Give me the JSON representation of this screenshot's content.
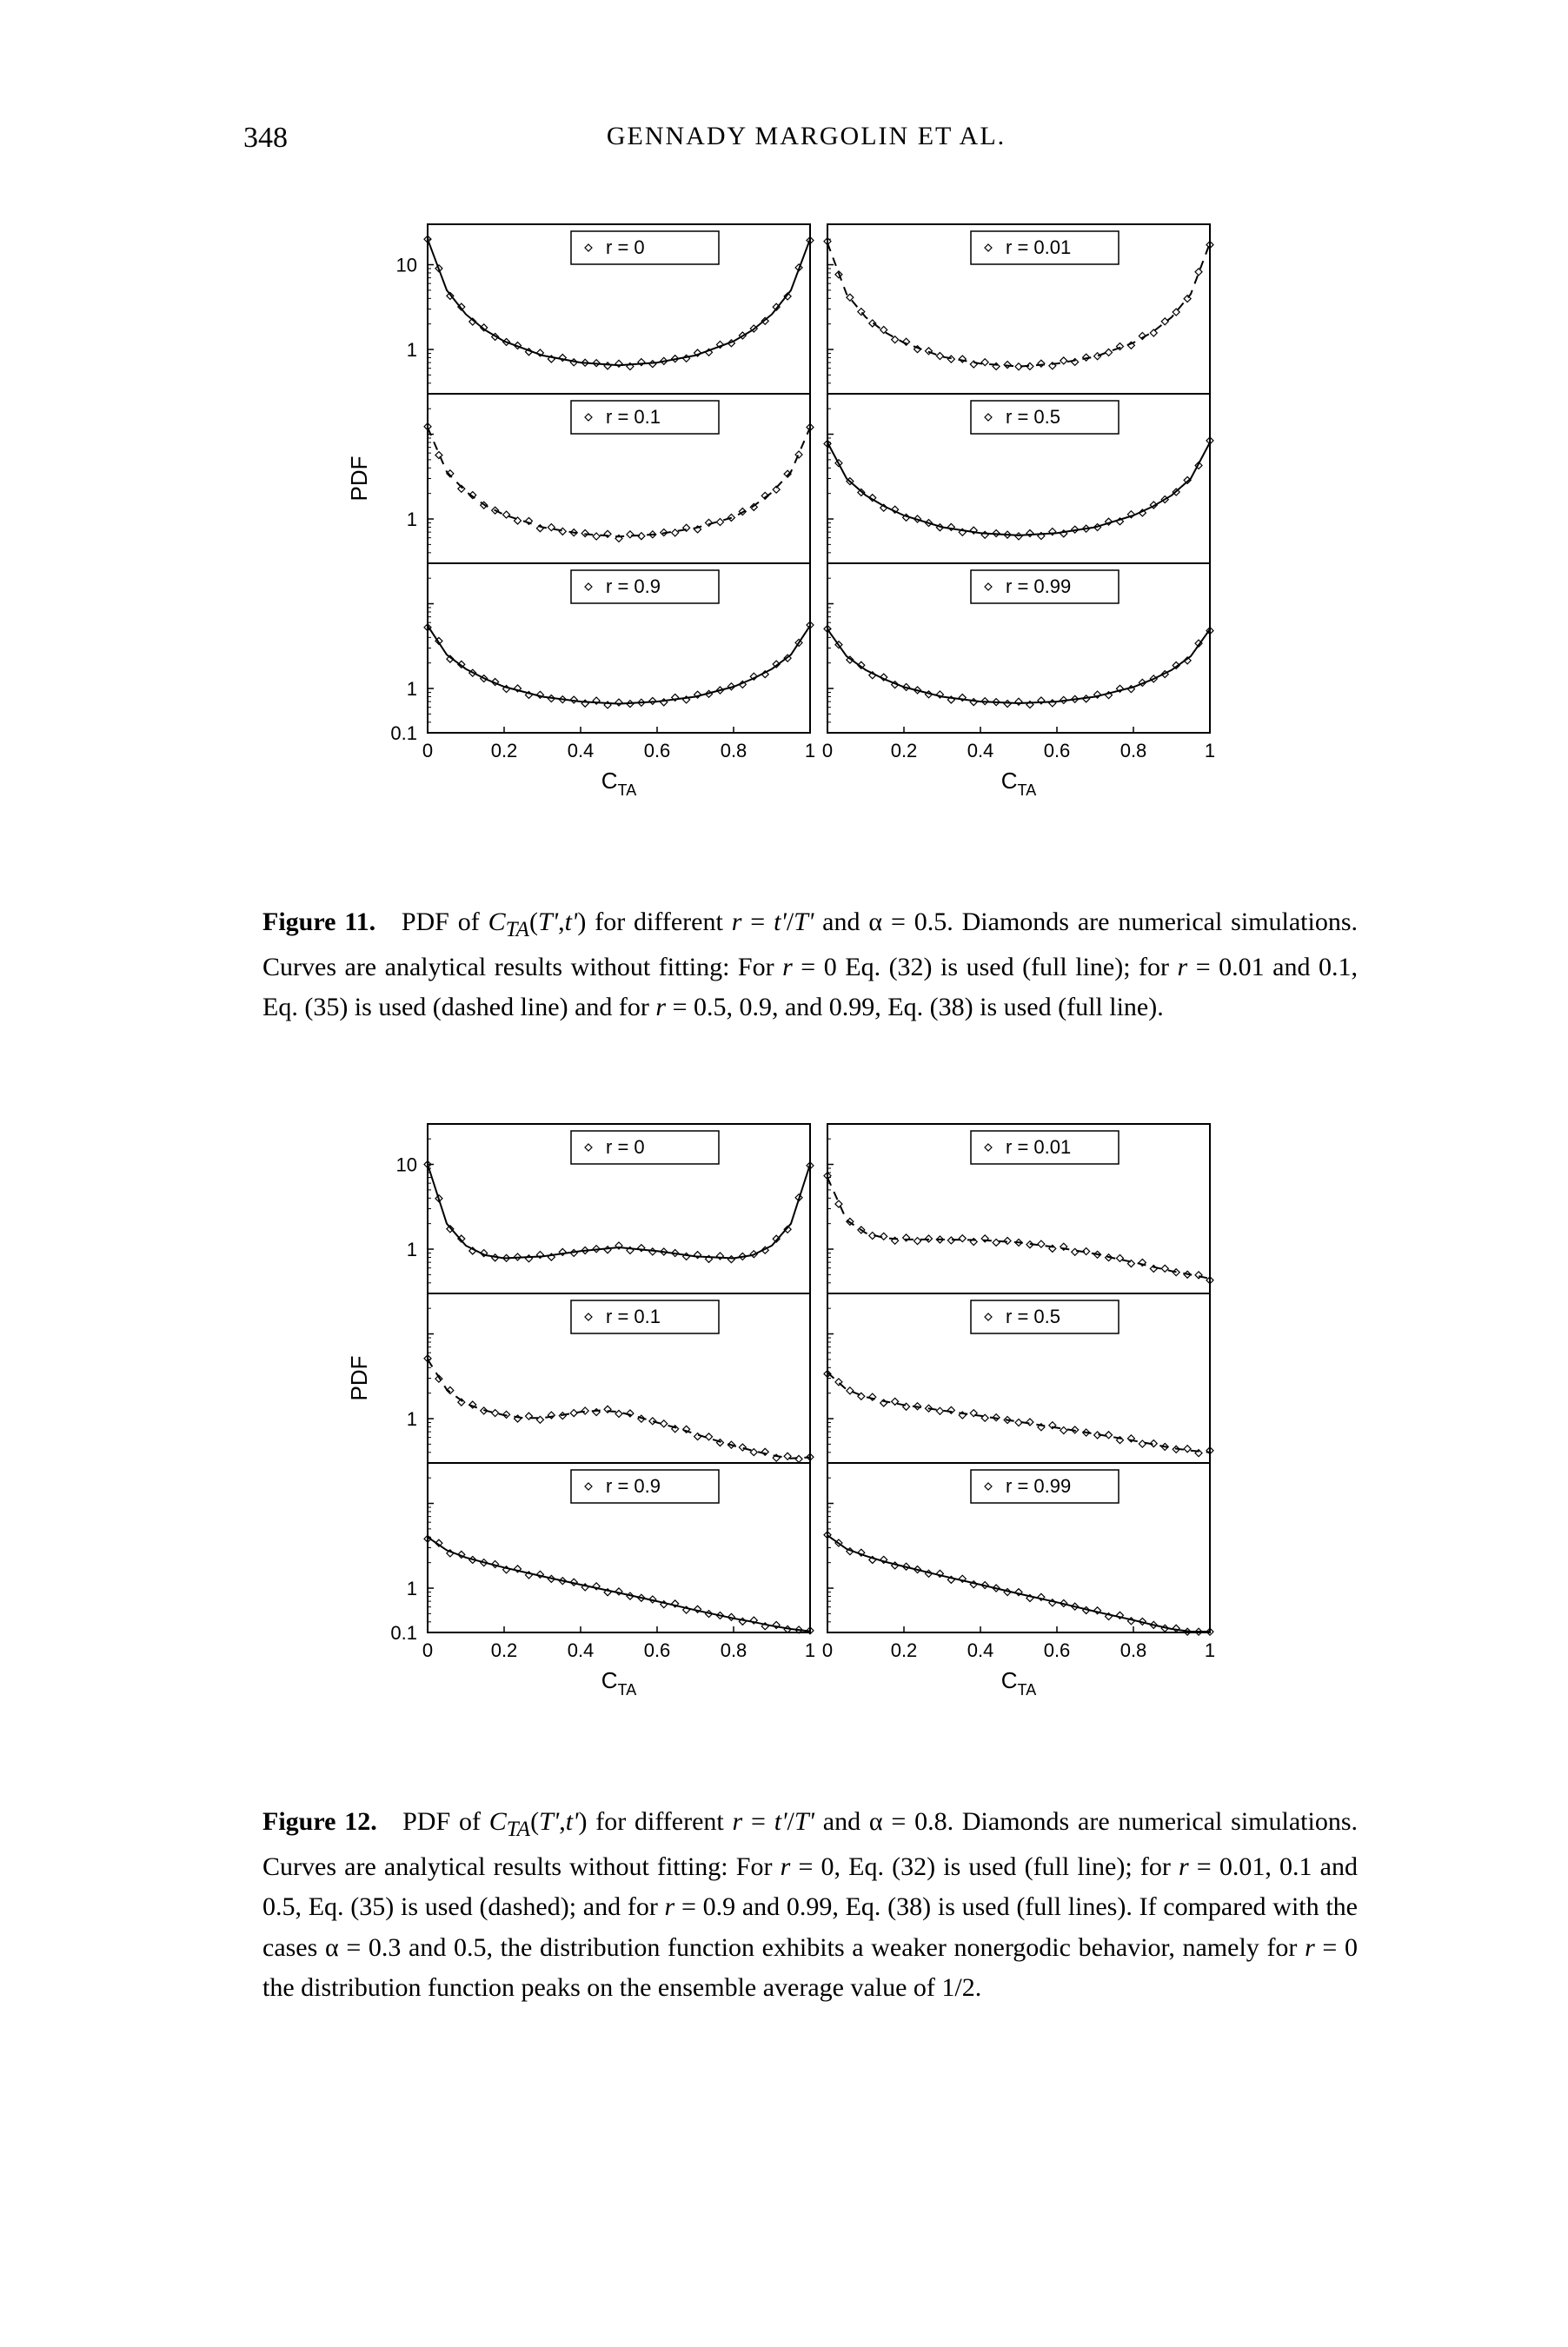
{
  "page": {
    "number": "348",
    "running_head": "GENNADY MARGOLIN ET AL."
  },
  "figures": [
    {
      "id": "fig11",
      "caption_lead": "Figure 11.",
      "caption_body": "PDF of C_{TA}(T',t') for different r = t'/T' and α = 0.5. Diamonds are numerical simulations. Curves are analytical results without fitting: For r = 0 Eq. (32) is used (full line); for r = 0.01 and 0.1, Eq. (35) is used (dashed line) and for r = 0.5, 0.9, and 0.99, Eq. (38) is used (full line).",
      "panels": [
        {
          "label": "r = 0"
        },
        {
          "label": "r = 0.01"
        },
        {
          "label": "r = 0.1"
        },
        {
          "label": "r = 0.5"
        },
        {
          "label": "r = 0.9"
        },
        {
          "label": "r = 0.99"
        }
      ]
    },
    {
      "id": "fig12",
      "caption_lead": "Figure 12.",
      "caption_body": "PDF of C_{TA}(T',t') for different r = t'/T' and α = 0.8. Diamonds are numerical simulations. Curves are analytical results without fitting: For r = 0, Eq. (32) is used (full line); for r = 0.01, 0.1 and 0.5, Eq. (35) is used (dashed); and for r = 0.9 and 0.99, Eq. (38) is used (full lines). If compared with the cases α = 0.3 and 0.5, the distribution function exhibits a weaker nonergodic behavior, namely for r = 0 the distribution function peaks on the ensemble average value of 1/2.",
      "panels": [
        {
          "label": "r = 0"
        },
        {
          "label": "r = 0.01"
        },
        {
          "label": "r = 0.1"
        },
        {
          "label": "r = 0.5"
        },
        {
          "label": "r = 0.9"
        },
        {
          "label": "r = 0.99"
        }
      ]
    }
  ],
  "plot_style": {
    "line_color": "#000000",
    "marker": "diamond",
    "marker_size": 4,
    "marker_color": "#000000",
    "background": "#ffffff",
    "axis_color": "#000000",
    "axis_width": 2,
    "font_family": "Arial",
    "tick_fontsize": 22,
    "label_fontsize": 26,
    "legend_box_stroke": "#000000",
    "legend_box_fill": "#ffffff"
  },
  "axes": {
    "x": {
      "label_html": "C<tspan baseline-shift=\"-6\" font-size=\"18\">TA</tspan>",
      "lim": [
        0,
        1
      ],
      "ticks": [
        0,
        0.2,
        0.4,
        0.6,
        0.8,
        1
      ],
      "tick_labels": [
        "0",
        "0.2",
        "0.4",
        "0.6",
        "0.8",
        "1"
      ]
    },
    "y": {
      "label": "PDF",
      "scale": "log",
      "lim": [
        0.1,
        30
      ],
      "row_lim": [
        0.3,
        30
      ],
      "ticks_per_row": [
        1,
        10
      ],
      "outer_ticks": [
        0.1,
        1,
        10
      ],
      "outer_labels": [
        "0.1",
        "1",
        "10"
      ]
    }
  },
  "series": {
    "fig11": {
      "r0": {
        "line_style": "solid",
        "curve": [
          [
            0.0,
            20
          ],
          [
            0.05,
            5.0
          ],
          [
            0.1,
            2.6
          ],
          [
            0.15,
            1.7
          ],
          [
            0.2,
            1.25
          ],
          [
            0.3,
            0.85
          ],
          [
            0.4,
            0.7
          ],
          [
            0.5,
            0.65
          ],
          [
            0.6,
            0.7
          ],
          [
            0.7,
            0.85
          ],
          [
            0.8,
            1.25
          ],
          [
            0.85,
            1.7
          ],
          [
            0.9,
            2.6
          ],
          [
            0.95,
            5.0
          ],
          [
            1.0,
            20
          ]
        ]
      },
      "r001": {
        "line_style": "dashed",
        "curve": [
          [
            0.0,
            18
          ],
          [
            0.05,
            4.5
          ],
          [
            0.1,
            2.4
          ],
          [
            0.15,
            1.6
          ],
          [
            0.2,
            1.2
          ],
          [
            0.3,
            0.82
          ],
          [
            0.4,
            0.68
          ],
          [
            0.5,
            0.63
          ],
          [
            0.6,
            0.68
          ],
          [
            0.7,
            0.82
          ],
          [
            0.8,
            1.2
          ],
          [
            0.85,
            1.6
          ],
          [
            0.9,
            2.4
          ],
          [
            0.95,
            4.5
          ],
          [
            1.0,
            18
          ]
        ]
      },
      "r01": {
        "line_style": "dashed",
        "curve": [
          [
            0.0,
            12
          ],
          [
            0.05,
            3.6
          ],
          [
            0.1,
            2.1
          ],
          [
            0.15,
            1.45
          ],
          [
            0.2,
            1.12
          ],
          [
            0.3,
            0.8
          ],
          [
            0.4,
            0.67
          ],
          [
            0.5,
            0.62
          ],
          [
            0.6,
            0.66
          ],
          [
            0.7,
            0.78
          ],
          [
            0.8,
            1.05
          ],
          [
            0.85,
            1.4
          ],
          [
            0.9,
            2.05
          ],
          [
            0.95,
            3.6
          ],
          [
            1.0,
            12
          ]
        ]
      },
      "r05": {
        "line_style": "solid",
        "curve": [
          [
            0.0,
            8.0
          ],
          [
            0.05,
            3.0
          ],
          [
            0.1,
            1.9
          ],
          [
            0.15,
            1.4
          ],
          [
            0.2,
            1.1
          ],
          [
            0.3,
            0.8
          ],
          [
            0.4,
            0.68
          ],
          [
            0.5,
            0.64
          ],
          [
            0.6,
            0.68
          ],
          [
            0.7,
            0.8
          ],
          [
            0.8,
            1.1
          ],
          [
            0.85,
            1.4
          ],
          [
            0.9,
            1.9
          ],
          [
            0.95,
            3.0
          ],
          [
            1.0,
            8.0
          ]
        ]
      },
      "r09": {
        "line_style": "solid",
        "curve": [
          [
            0.0,
            5.5
          ],
          [
            0.05,
            2.5
          ],
          [
            0.1,
            1.7
          ],
          [
            0.15,
            1.3
          ],
          [
            0.2,
            1.05
          ],
          [
            0.3,
            0.8
          ],
          [
            0.4,
            0.7
          ],
          [
            0.5,
            0.66
          ],
          [
            0.6,
            0.7
          ],
          [
            0.7,
            0.8
          ],
          [
            0.8,
            1.05
          ],
          [
            0.85,
            1.3
          ],
          [
            0.9,
            1.7
          ],
          [
            0.95,
            2.5
          ],
          [
            1.0,
            5.5
          ]
        ]
      },
      "r099": {
        "line_style": "solid",
        "curve": [
          [
            0.0,
            5.0
          ],
          [
            0.05,
            2.4
          ],
          [
            0.1,
            1.65
          ],
          [
            0.15,
            1.28
          ],
          [
            0.2,
            1.04
          ],
          [
            0.3,
            0.8
          ],
          [
            0.4,
            0.7
          ],
          [
            0.5,
            0.67
          ],
          [
            0.6,
            0.7
          ],
          [
            0.7,
            0.8
          ],
          [
            0.8,
            1.04
          ],
          [
            0.85,
            1.28
          ],
          [
            0.9,
            1.65
          ],
          [
            0.95,
            2.4
          ],
          [
            1.0,
            5.0
          ]
        ]
      }
    },
    "fig12": {
      "r0": {
        "line_style": "solid",
        "curve": [
          [
            0.0,
            10
          ],
          [
            0.05,
            2.0
          ],
          [
            0.1,
            1.1
          ],
          [
            0.15,
            0.85
          ],
          [
            0.2,
            0.78
          ],
          [
            0.3,
            0.82
          ],
          [
            0.4,
            0.95
          ],
          [
            0.5,
            1.05
          ],
          [
            0.6,
            0.95
          ],
          [
            0.7,
            0.82
          ],
          [
            0.8,
            0.78
          ],
          [
            0.85,
            0.85
          ],
          [
            0.9,
            1.1
          ],
          [
            0.95,
            2.0
          ],
          [
            1.0,
            10
          ]
        ]
      },
      "r001": {
        "line_style": "dashed",
        "curve": [
          [
            0.0,
            7.0
          ],
          [
            0.05,
            2.2
          ],
          [
            0.1,
            1.55
          ],
          [
            0.15,
            1.35
          ],
          [
            0.2,
            1.3
          ],
          [
            0.3,
            1.3
          ],
          [
            0.4,
            1.28
          ],
          [
            0.5,
            1.2
          ],
          [
            0.6,
            1.05
          ],
          [
            0.7,
            0.88
          ],
          [
            0.75,
            0.78
          ],
          [
            0.8,
            0.7
          ],
          [
            0.85,
            0.62
          ],
          [
            0.9,
            0.55
          ],
          [
            0.95,
            0.5
          ],
          [
            1.0,
            0.45
          ]
        ]
      },
      "r01": {
        "line_style": "dashed",
        "curve": [
          [
            0.0,
            5.0
          ],
          [
            0.05,
            2.2
          ],
          [
            0.1,
            1.5
          ],
          [
            0.15,
            1.25
          ],
          [
            0.2,
            1.1
          ],
          [
            0.25,
            1.02
          ],
          [
            0.3,
            1.02
          ],
          [
            0.35,
            1.1
          ],
          [
            0.4,
            1.2
          ],
          [
            0.45,
            1.25
          ],
          [
            0.5,
            1.2
          ],
          [
            0.55,
            1.05
          ],
          [
            0.6,
            0.9
          ],
          [
            0.65,
            0.78
          ],
          [
            0.7,
            0.66
          ],
          [
            0.75,
            0.56
          ],
          [
            0.8,
            0.48
          ],
          [
            0.85,
            0.42
          ],
          [
            0.9,
            0.37
          ],
          [
            0.95,
            0.34
          ],
          [
            1.0,
            0.35
          ]
        ]
      },
      "r05": {
        "line_style": "dashed",
        "curve": [
          [
            0.0,
            3.5
          ],
          [
            0.05,
            2.2
          ],
          [
            0.1,
            1.8
          ],
          [
            0.15,
            1.6
          ],
          [
            0.2,
            1.45
          ],
          [
            0.3,
            1.25
          ],
          [
            0.4,
            1.08
          ],
          [
            0.5,
            0.92
          ],
          [
            0.6,
            0.78
          ],
          [
            0.7,
            0.66
          ],
          [
            0.8,
            0.55
          ],
          [
            0.85,
            0.5
          ],
          [
            0.9,
            0.45
          ],
          [
            0.95,
            0.42
          ],
          [
            1.0,
            0.4
          ]
        ]
      },
      "r09": {
        "line_style": "solid",
        "curve": [
          [
            0.0,
            4.0
          ],
          [
            0.05,
            2.8
          ],
          [
            0.1,
            2.3
          ],
          [
            0.15,
            2.0
          ],
          [
            0.2,
            1.75
          ],
          [
            0.3,
            1.38
          ],
          [
            0.4,
            1.1
          ],
          [
            0.5,
            0.88
          ],
          [
            0.6,
            0.7
          ],
          [
            0.7,
            0.55
          ],
          [
            0.8,
            0.44
          ],
          [
            0.85,
            0.4
          ],
          [
            0.9,
            0.36
          ],
          [
            0.95,
            0.33
          ],
          [
            1.0,
            0.31
          ]
        ]
      },
      "r099": {
        "line_style": "solid",
        "curve": [
          [
            0.0,
            4.2
          ],
          [
            0.05,
            2.9
          ],
          [
            0.1,
            2.4
          ],
          [
            0.15,
            2.05
          ],
          [
            0.2,
            1.8
          ],
          [
            0.3,
            1.4
          ],
          [
            0.4,
            1.1
          ],
          [
            0.5,
            0.86
          ],
          [
            0.6,
            0.68
          ],
          [
            0.7,
            0.53
          ],
          [
            0.8,
            0.42
          ],
          [
            0.85,
            0.37
          ],
          [
            0.9,
            0.33
          ],
          [
            0.95,
            0.3
          ],
          [
            1.0,
            0.28
          ]
        ]
      }
    }
  }
}
